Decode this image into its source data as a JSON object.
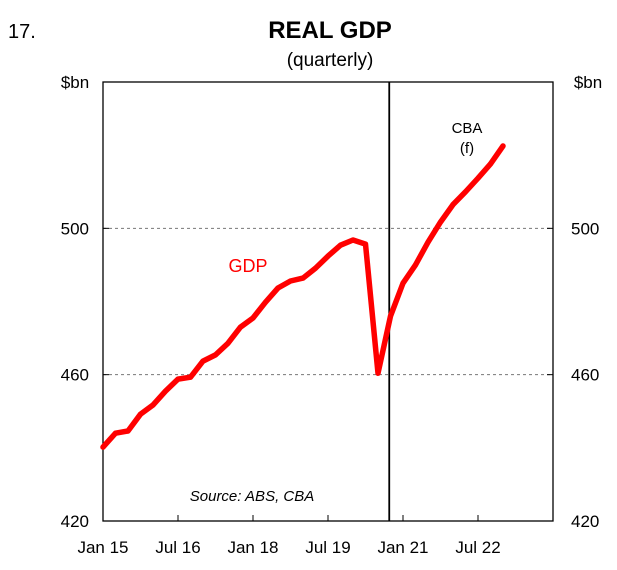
{
  "chart_data": {
    "type": "line",
    "number": "17.",
    "title": "REAL GDP",
    "subtitle": "(quarterly)",
    "ylabel_left": "$bn",
    "ylabel_right": "$bn",
    "ylim": [
      420,
      540
    ],
    "yticks": [
      420,
      460,
      500
    ],
    "ytick_labels": [
      "420",
      "460",
      "500"
    ],
    "gridlines": [
      460,
      500
    ],
    "x_unit": "quarters since Jan 15",
    "xlim": [
      0,
      36
    ],
    "xticks": [
      0,
      6,
      12,
      18,
      24,
      30
    ],
    "xtick_labels": [
      "Jan 15",
      "Jul 16",
      "Jan 18",
      "Jul 19",
      "Jan 21",
      "Jul 22"
    ],
    "forecast_divider_x": 22.9,
    "series": [
      {
        "name": "GDP",
        "color": "#ff0000",
        "x": [
          0,
          1,
          2,
          3,
          4,
          5,
          6,
          7,
          8,
          9,
          10,
          11,
          12,
          13,
          14,
          15,
          16,
          17,
          18,
          19,
          20,
          21,
          22,
          23,
          24,
          25,
          26,
          27,
          28,
          29,
          30,
          31,
          32
        ],
        "values": [
          440.2,
          444,
          444.6,
          449.2,
          451.7,
          455.5,
          458.8,
          459.3,
          463.7,
          465.4,
          468.6,
          473,
          475.5,
          479.8,
          483.7,
          485.6,
          486.4,
          489.1,
          492.4,
          495.4,
          496.8,
          495.7,
          460.4,
          476,
          485,
          490,
          496.2,
          501.7,
          506.5,
          510,
          513.7,
          517.6,
          522.5
        ]
      }
    ],
    "annotations": {
      "series_label": "GDP",
      "forecast_label_1": "CBA",
      "forecast_label_2": "(f)",
      "source": "Source: ABS, CBA"
    },
    "legend": "none"
  }
}
